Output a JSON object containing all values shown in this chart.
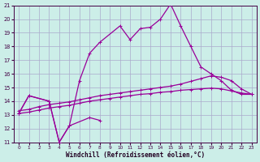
{
  "xlabel": "Windchill (Refroidissement éolien,°C)",
  "xlim": [
    -0.5,
    23.5
  ],
  "ylim": [
    11,
    21
  ],
  "yticks": [
    11,
    12,
    13,
    14,
    15,
    16,
    17,
    18,
    19,
    20,
    21
  ],
  "xticks": [
    0,
    1,
    2,
    3,
    4,
    5,
    6,
    7,
    8,
    9,
    10,
    11,
    12,
    13,
    14,
    15,
    16,
    17,
    18,
    19,
    20,
    21,
    22,
    23
  ],
  "background_color": "#cceee8",
  "grid_color": "#aaaacc",
  "line_color": "#990099",
  "line1_x": [
    0,
    1,
    2,
    3,
    4,
    5,
    6,
    7,
    8,
    9,
    10,
    11,
    12,
    13,
    14,
    15,
    16,
    17,
    18,
    19,
    20,
    21,
    22,
    23
  ],
  "line1_y": [
    13.1,
    13.2,
    13.35,
    13.5,
    13.6,
    13.7,
    13.85,
    14.0,
    14.1,
    14.2,
    14.3,
    14.4,
    14.5,
    14.55,
    14.65,
    14.7,
    14.8,
    14.85,
    14.9,
    14.95,
    14.9,
    14.75,
    14.6,
    14.5
  ],
  "line2_x": [
    0,
    1,
    2,
    3,
    4,
    5,
    6,
    7,
    8,
    9,
    10,
    11,
    12,
    13,
    14,
    15,
    16,
    17,
    18,
    19,
    20,
    21,
    22,
    23
  ],
  "line2_y": [
    13.3,
    13.4,
    13.6,
    13.75,
    13.85,
    13.95,
    14.1,
    14.25,
    14.4,
    14.5,
    14.6,
    14.7,
    14.8,
    14.9,
    15.0,
    15.1,
    15.25,
    15.45,
    15.65,
    15.85,
    15.75,
    15.5,
    14.9,
    14.5
  ],
  "line3_x": [
    0,
    1,
    3,
    4,
    5,
    6,
    7,
    8,
    10,
    11,
    12,
    13,
    14,
    15,
    16,
    17,
    18,
    19,
    20,
    21,
    22,
    23
  ],
  "line3_y": [
    13.1,
    14.4,
    14.0,
    11.0,
    12.2,
    15.5,
    17.5,
    18.3,
    19.5,
    18.5,
    19.3,
    19.4,
    20.0,
    21.1,
    19.5,
    18.0,
    16.5,
    16.0,
    15.5,
    14.8,
    14.5,
    14.5
  ],
  "line4_x": [
    0,
    1,
    3,
    4,
    5,
    7,
    8
  ],
  "line4_y": [
    13.1,
    14.4,
    14.0,
    11.0,
    12.2,
    12.8,
    12.6
  ]
}
